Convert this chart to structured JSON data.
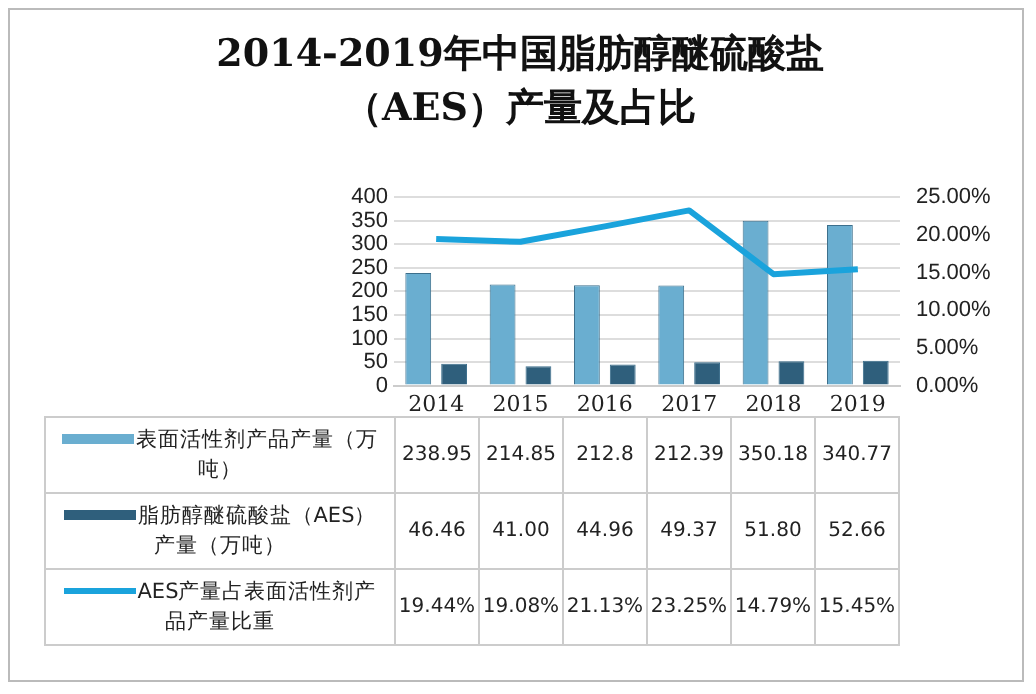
{
  "chart_data": {
    "type": "bar",
    "title": "2014-2019年中国脂肪醇醚硫酸盐（AES）产量及占比",
    "categories": [
      "2014",
      "2015",
      "2016",
      "2017",
      "2018",
      "2019"
    ],
    "series": [
      {
        "name": "表面活性剂产品产量（万吨）",
        "color": "#6aaed0",
        "values": [
          238.95,
          214.85,
          212.8,
          212.39,
          350.18,
          340.77
        ],
        "value_labels": [
          "238.95",
          "214.85",
          "212.8",
          "212.39",
          "350.18",
          "340.77"
        ]
      },
      {
        "name": "脂肪醇醚硫酸盐（AES）产量（万吨）",
        "color": "#2f5f7c",
        "values": [
          46.46,
          41.0,
          44.96,
          49.37,
          51.8,
          52.66
        ],
        "value_labels": [
          "46.46",
          "41.00",
          "44.96",
          "49.37",
          "51.80",
          "52.66"
        ]
      },
      {
        "name": "AES产量占表面活性剂产品产量比重",
        "type": "line",
        "axis": "y2",
        "color": "#1aa3dc",
        "values": [
          19.44,
          19.08,
          21.13,
          23.25,
          14.79,
          15.45
        ],
        "value_labels": [
          "19.44%",
          "19.08%",
          "21.13%",
          "23.25%",
          "14.79%",
          "15.45%"
        ]
      }
    ],
    "ylim": [
      0,
      400
    ],
    "yticks": [
      0,
      50,
      100,
      150,
      200,
      250,
      300,
      350,
      400
    ],
    "y2lim": [
      0,
      25
    ],
    "y2ticks": [
      {
        "value": 0,
        "label": "0.00%"
      },
      {
        "value": 5,
        "label": "5.00%"
      },
      {
        "value": 10,
        "label": "10.00%"
      },
      {
        "value": 15,
        "label": "15.00%"
      },
      {
        "value": 20,
        "label": "20.00%"
      },
      {
        "value": 25,
        "label": "25.00%"
      }
    ],
    "grid": "y",
    "legend": "bottom",
    "marker": "none",
    "line_style": "solid"
  }
}
